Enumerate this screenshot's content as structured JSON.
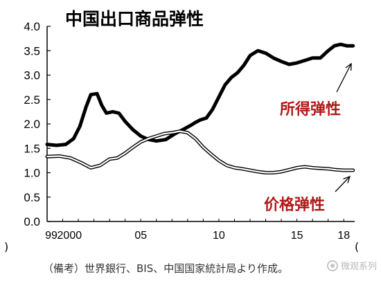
{
  "chart_data": {
    "type": "line",
    "title": "中国出口商品弹性",
    "ylim": [
      0.0,
      4.0
    ],
    "y_ticks": [
      "4.0",
      "3.5",
      "3.0",
      "2.5",
      "2.0",
      "1.5",
      "1.0",
      "0.5",
      "0.0"
    ],
    "x_range": [
      1999.0,
      2018.7
    ],
    "x_ticks": [
      {
        "label": "99",
        "x": 1999
      },
      {
        "label": "2000",
        "x": 2000
      },
      {
        "label": "05",
        "x": 2005
      },
      {
        "label": "10",
        "x": 2010
      },
      {
        "label": "15",
        "x": 2015
      },
      {
        "label": "18",
        "x": 2018
      }
    ],
    "grid": false,
    "series": [
      {
        "name": "所得弹性",
        "color": "#000000",
        "style": "thick",
        "x": [
          1999.0,
          1999.6,
          2000.2,
          2000.7,
          2001.1,
          2001.5,
          2001.8,
          2002.2,
          2002.5,
          2002.8,
          2003.2,
          2003.6,
          2004.0,
          2004.5,
          2005.0,
          2005.5,
          2006.0,
          2006.6,
          2007.2,
          2007.8,
          2008.2,
          2008.5,
          2008.8,
          2009.2,
          2009.6,
          2010.0,
          2010.4,
          2010.8,
          2011.2,
          2011.6,
          2012.0,
          2012.5,
          2013.0,
          2013.5,
          2014.0,
          2014.5,
          2015.0,
          2015.5,
          2016.0,
          2016.5,
          2017.0,
          2017.4,
          2017.8,
          2018.2,
          2018.6
        ],
        "y": [
          1.58,
          1.56,
          1.58,
          1.7,
          1.95,
          2.35,
          2.6,
          2.62,
          2.38,
          2.22,
          2.25,
          2.22,
          2.05,
          1.88,
          1.75,
          1.68,
          1.65,
          1.68,
          1.8,
          1.9,
          1.97,
          2.03,
          2.08,
          2.12,
          2.3,
          2.55,
          2.8,
          2.95,
          3.05,
          3.2,
          3.4,
          3.5,
          3.45,
          3.35,
          3.28,
          3.22,
          3.25,
          3.3,
          3.35,
          3.35,
          3.5,
          3.6,
          3.63,
          3.6,
          3.6
        ]
      },
      {
        "name": "价格弹性",
        "color": "#000000",
        "style": "double",
        "x": [
          1999.0,
          1999.8,
          2000.5,
          2001.2,
          2001.8,
          2002.4,
          2003.0,
          2003.5,
          2004.0,
          2004.5,
          2005.0,
          2005.5,
          2006.0,
          2006.5,
          2007.0,
          2007.5,
          2008.0,
          2008.5,
          2009.0,
          2009.5,
          2010.0,
          2010.5,
          2011.0,
          2011.5,
          2012.0,
          2012.5,
          2013.0,
          2013.5,
          2014.0,
          2014.5,
          2015.0,
          2015.5,
          2016.0,
          2016.5,
          2017.0,
          2017.5,
          2018.0,
          2018.6
        ],
        "y": [
          1.33,
          1.34,
          1.3,
          1.2,
          1.1,
          1.15,
          1.28,
          1.3,
          1.4,
          1.52,
          1.63,
          1.7,
          1.75,
          1.8,
          1.82,
          1.85,
          1.82,
          1.7,
          1.52,
          1.38,
          1.25,
          1.15,
          1.1,
          1.08,
          1.05,
          1.02,
          1.0,
          1.0,
          1.02,
          1.06,
          1.1,
          1.12,
          1.1,
          1.09,
          1.08,
          1.06,
          1.05,
          1.05
        ]
      }
    ],
    "annotations": [
      {
        "text": "所得弹性",
        "points_to": "所得弹性"
      },
      {
        "text": "价格弹性",
        "points_to": "价格弹性"
      }
    ]
  },
  "left_mark": ")",
  "right_mark": "(",
  "source_note": "（備考）世界銀行、BIS、中国国家統計局より作成。",
  "watermark": "微观系列"
}
